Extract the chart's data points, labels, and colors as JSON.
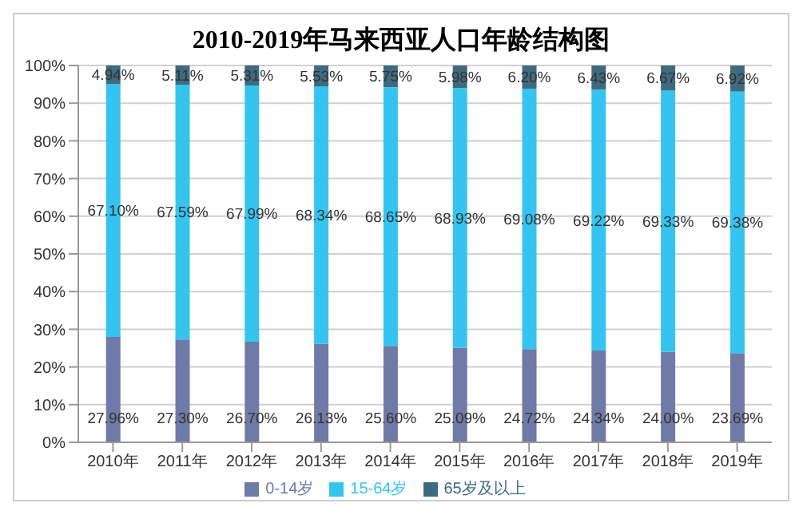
{
  "chart_data": {
    "type": "bar",
    "title": "2010-2019年马来西亚人口年龄结构图",
    "stacked": true,
    "categories": [
      "2010年",
      "2011年",
      "2012年",
      "2013年",
      "2014年",
      "2015年",
      "2016年",
      "2017年",
      "2018年",
      "2019年"
    ],
    "series": [
      {
        "name": "0-14岁",
        "color": "#6f7aa6",
        "values": [
          27.96,
          27.3,
          26.7,
          26.13,
          25.6,
          25.09,
          24.72,
          24.34,
          24.0,
          23.69
        ],
        "value_labels": [
          "27.96%",
          "27.30%",
          "26.70%",
          "26.13%",
          "25.60%",
          "25.09%",
          "24.72%",
          "24.34%",
          "24.00%",
          "23.69%"
        ]
      },
      {
        "name": "15-64岁",
        "color": "#35c4f0",
        "values": [
          67.1,
          67.59,
          67.99,
          68.34,
          68.65,
          68.93,
          69.08,
          69.22,
          69.33,
          69.38
        ],
        "value_labels": [
          "67.10%",
          "67.59%",
          "67.99%",
          "68.34%",
          "68.65%",
          "68.93%",
          "69.08%",
          "69.22%",
          "69.33%",
          "69.38%"
        ]
      },
      {
        "name": "65岁及以上",
        "color": "#3f6b80",
        "values": [
          4.94,
          5.11,
          5.31,
          5.53,
          5.75,
          5.98,
          6.2,
          6.43,
          6.67,
          6.92
        ],
        "value_labels": [
          "4.94%",
          "5.11%",
          "5.31%",
          "5.53%",
          "5.75%",
          "5.98%",
          "6.20%",
          "6.43%",
          "6.67%",
          "6.92%"
        ]
      }
    ],
    "ylim": [
      0,
      100
    ],
    "yticks": [
      {
        "value": 0,
        "label": "0%"
      },
      {
        "value": 10,
        "label": "10%"
      },
      {
        "value": 20,
        "label": "20%"
      },
      {
        "value": 30,
        "label": "30%"
      },
      {
        "value": 40,
        "label": "40%"
      },
      {
        "value": 50,
        "label": "50%"
      },
      {
        "value": 60,
        "label": "60%"
      },
      {
        "value": 70,
        "label": "70%"
      },
      {
        "value": 80,
        "label": "80%"
      },
      {
        "value": 90,
        "label": "90%"
      },
      {
        "value": 100,
        "label": "100%"
      }
    ],
    "grid": "y",
    "legend": "bottom"
  }
}
